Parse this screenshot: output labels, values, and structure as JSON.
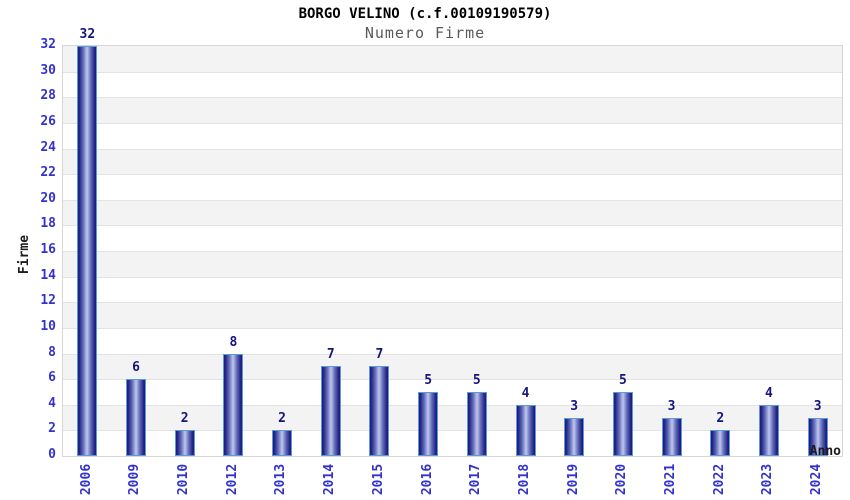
{
  "header": {
    "title": "BORGO VELINO (c.f.00109190579)",
    "subtitle": "Numero Firme"
  },
  "chart_data": {
    "type": "bar",
    "title": "BORGO VELINO (c.f.00109190579)",
    "subtitle": "Numero Firme",
    "categories": [
      "2006",
      "2009",
      "2010",
      "2012",
      "2013",
      "2014",
      "2015",
      "2016",
      "2017",
      "2018",
      "2019",
      "2020",
      "2021",
      "2022",
      "2023",
      "2024"
    ],
    "values": [
      32,
      6,
      2,
      8,
      2,
      7,
      7,
      5,
      5,
      4,
      3,
      5,
      3,
      2,
      4,
      3
    ],
    "xlabel": "Anno",
    "ylabel": "Firme",
    "ylim": [
      0,
      32
    ],
    "ytick_step": 2,
    "grid": true,
    "legend": false,
    "band_pattern": "alternating gray band every 2 units (2-4, 6-8, ... 30-32)"
  },
  "colors": {
    "title_color": "#000000",
    "subtitle_color": "#5a5a5a",
    "tick_label": "#3333cc",
    "value_label": "#15157d",
    "axis_label": "#1c1c1c",
    "band_gray": "#f3f3f3",
    "gridline": "#e3e3e3",
    "plot_border": "#d6d6d6",
    "bar_border": "#5b9bd5",
    "bar_dark": "#1f1f82",
    "bar_mid": "#6670bc",
    "bar_light": "#b8c0e8"
  }
}
